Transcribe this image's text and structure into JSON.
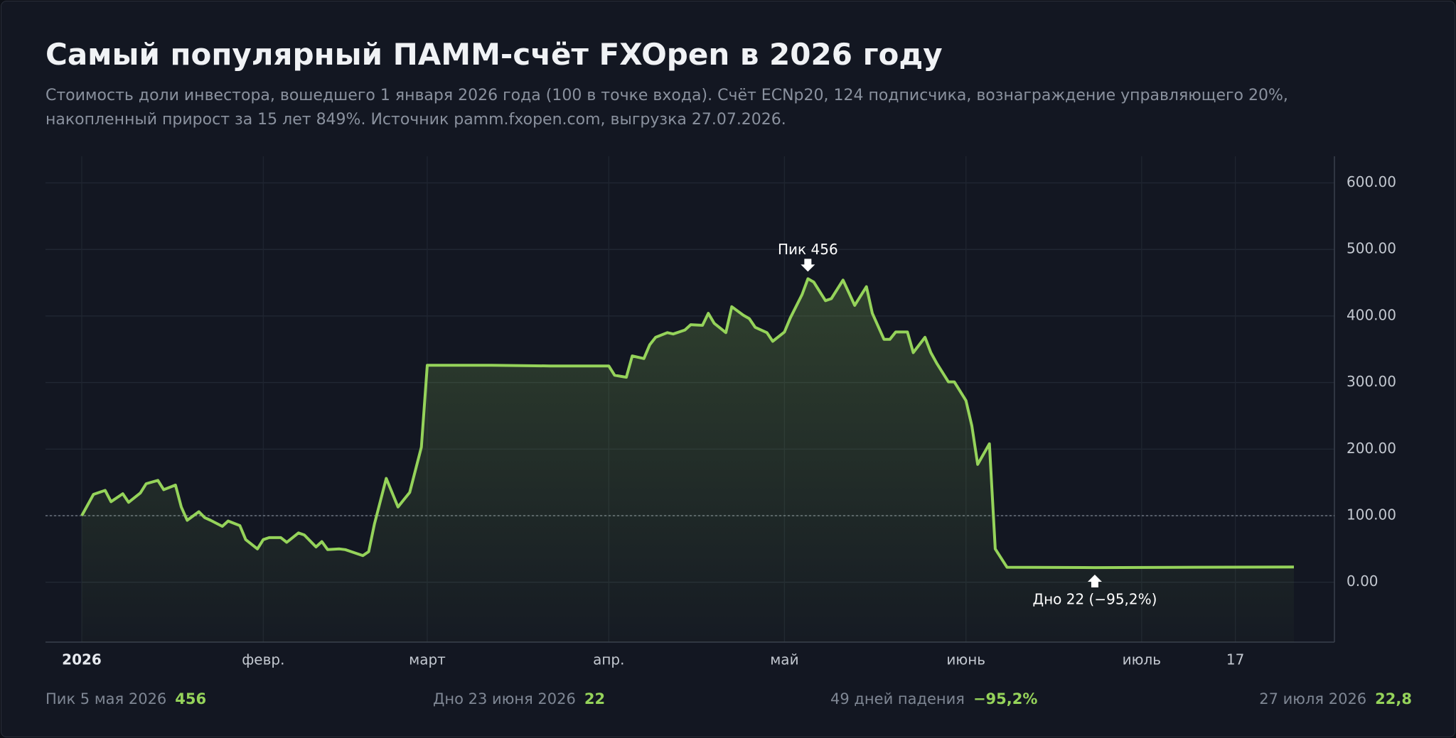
{
  "chart_data": {
    "type": "line",
    "title": "Самый популярный ПАММ-счёт FXOpen в 2026 году",
    "subtitle": "Стоимость доли инвестора, вошедшего 1 января 2026 года (100 в точке входа). Счёт ECNp20, 124 подписчика, вознаграждение управляющего 20%, накопленный прирост за 15 лет 849%. Источник pamm.fxopen.com, выгрузка 27.07.2026.",
    "x": [
      "2026-01-01",
      "2026-01-03",
      "2026-01-05",
      "2026-01-06",
      "2026-01-08",
      "2026-01-09",
      "2026-01-11",
      "2026-01-12",
      "2026-01-14",
      "2026-01-15",
      "2026-01-17",
      "2026-01-18",
      "2026-01-19",
      "2026-01-21",
      "2026-01-22",
      "2026-01-23",
      "2026-01-25",
      "2026-01-26",
      "2026-01-28",
      "2026-01-29",
      "2026-01-31",
      "2026-02-01",
      "2026-02-02",
      "2026-02-04",
      "2026-02-05",
      "2026-02-07",
      "2026-02-08",
      "2026-02-10",
      "2026-02-11",
      "2026-02-12",
      "2026-02-14",
      "2026-02-15",
      "2026-02-16",
      "2026-02-18",
      "2026-02-19",
      "2026-02-20",
      "2026-02-22",
      "2026-02-24",
      "2026-02-25",
      "2026-02-26",
      "2026-02-28",
      "2026-03-01",
      "2026-03-12",
      "2026-03-22",
      "2026-04-01",
      "2026-04-02",
      "2026-04-04",
      "2026-04-05",
      "2026-04-07",
      "2026-04-08",
      "2026-04-09",
      "2026-04-11",
      "2026-04-12",
      "2026-04-14",
      "2026-04-15",
      "2026-04-17",
      "2026-04-18",
      "2026-04-19",
      "2026-04-21",
      "2026-04-22",
      "2026-04-24",
      "2026-04-25",
      "2026-04-26",
      "2026-04-28",
      "2026-04-29",
      "2026-05-01",
      "2026-05-02",
      "2026-05-04",
      "2026-05-05",
      "2026-05-06",
      "2026-05-08",
      "2026-05-09",
      "2026-05-11",
      "2026-05-12",
      "2026-05-13",
      "2026-05-15",
      "2026-05-16",
      "2026-05-18",
      "2026-05-19",
      "2026-05-20",
      "2026-05-22",
      "2026-05-23",
      "2026-05-25",
      "2026-05-26",
      "2026-05-27",
      "2026-05-29",
      "2026-05-30",
      "2026-06-01",
      "2026-06-02",
      "2026-06-03",
      "2026-06-05",
      "2026-06-06",
      "2026-06-08",
      "2026-06-23",
      "2026-07-10",
      "2026-07-27"
    ],
    "series": [
      {
        "color": "#95d35a",
        "values": [
          100,
          132,
          138,
          121,
          133,
          120,
          134,
          148,
          153,
          139,
          146,
          113,
          93,
          106,
          97,
          93,
          84,
          92,
          85,
          64,
          50,
          64,
          67,
          67,
          60,
          74,
          71,
          53,
          61,
          49,
          50,
          49,
          46,
          40,
          46,
          88,
          156,
          113,
          124,
          135,
          203,
          326,
          326,
          325,
          325,
          311,
          308,
          340,
          336,
          357,
          368,
          375,
          373,
          379,
          387,
          386,
          404,
          389,
          375,
          414,
          401,
          396,
          383,
          375,
          362,
          376,
          397,
          432,
          456,
          451,
          423,
          426,
          454,
          435,
          416,
          444,
          404,
          365,
          365,
          376,
          376,
          345,
          368,
          345,
          329,
          301,
          301,
          273,
          235,
          177,
          208,
          50,
          22.5,
          22,
          22.5,
          22.8
        ]
      }
    ],
    "ylim": [
      -90,
      640
    ],
    "yticks": [
      {
        "value": 0,
        "label": "0.00"
      },
      {
        "value": 100,
        "label": "100.00"
      },
      {
        "value": 200,
        "label": "200.00"
      },
      {
        "value": 300,
        "label": "300.00"
      },
      {
        "value": 400,
        "label": "400.00"
      },
      {
        "value": 500,
        "label": "500.00"
      },
      {
        "value": 600,
        "label": "600.00"
      }
    ],
    "xticks": [
      {
        "value": "2026-01-01",
        "label": "2026"
      },
      {
        "value": "2026-02-01",
        "label": "февр."
      },
      {
        "value": "2026-03-01",
        "label": "март"
      },
      {
        "value": "2026-04-01",
        "label": "апр."
      },
      {
        "value": "2026-05-01",
        "label": "май"
      },
      {
        "value": "2026-06-01",
        "label": "июнь"
      },
      {
        "value": "2026-07-01",
        "label": "июль"
      },
      {
        "value": "2026-07-17",
        "label": "17"
      }
    ],
    "baseline": 100,
    "grid": true,
    "annotations": [
      {
        "x": "2026-05-05",
        "text": "Пик 456",
        "side": "above"
      },
      {
        "x": "2026-06-23",
        "text": "Дно 22  (−95,2%)",
        "side": "below"
      }
    ],
    "stats": [
      {
        "label": "Пик 5 мая 2026",
        "value": "456"
      },
      {
        "label": "Дно 23 июня 2026",
        "value": "22"
      },
      {
        "label": "49 дней падения",
        "value": "−95,2%"
      },
      {
        "label": "27 июля 2026",
        "value": "22,8"
      }
    ]
  }
}
